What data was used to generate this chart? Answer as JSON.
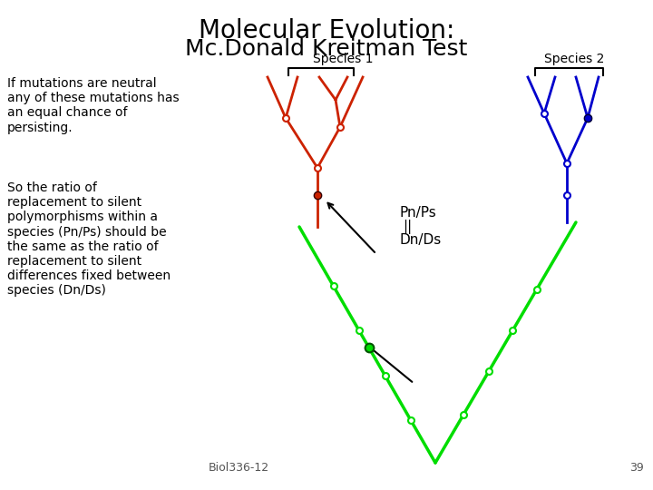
{
  "title_line1": "Molecular Evolution:",
  "title_line2": "Mc.Donald Kreitman Test",
  "title1_color": "#000000",
  "title2_color": "#000000",
  "title1_fontsize": 20,
  "title2_fontsize": 18,
  "bg_color": "#ffffff",
  "left_text1": "If mutations are neutral\nany of these mutations has\nan equal chance of\npersisting.",
  "left_text2": "So the ratio of\nreplacement to silent\npolymorphisms within a\nspecies (Pn/Ps) should be\nthe same as the ratio of\nreplacement to silent\ndifferences fixed between\nspecies (Dn/Ds)",
  "biol_text": "Biol336-12",
  "page_num": "39",
  "species1_label": "Species 1",
  "species2_label": "Species 2",
  "pnps_text": "Pn/Ps",
  "equals_text": "||",
  "dnds_text": "Dn/Ds",
  "green_color": "#00dd00",
  "red_color": "#cc2200",
  "blue_color": "#0000cc",
  "text_fontsize": 10,
  "label_fontsize": 10
}
